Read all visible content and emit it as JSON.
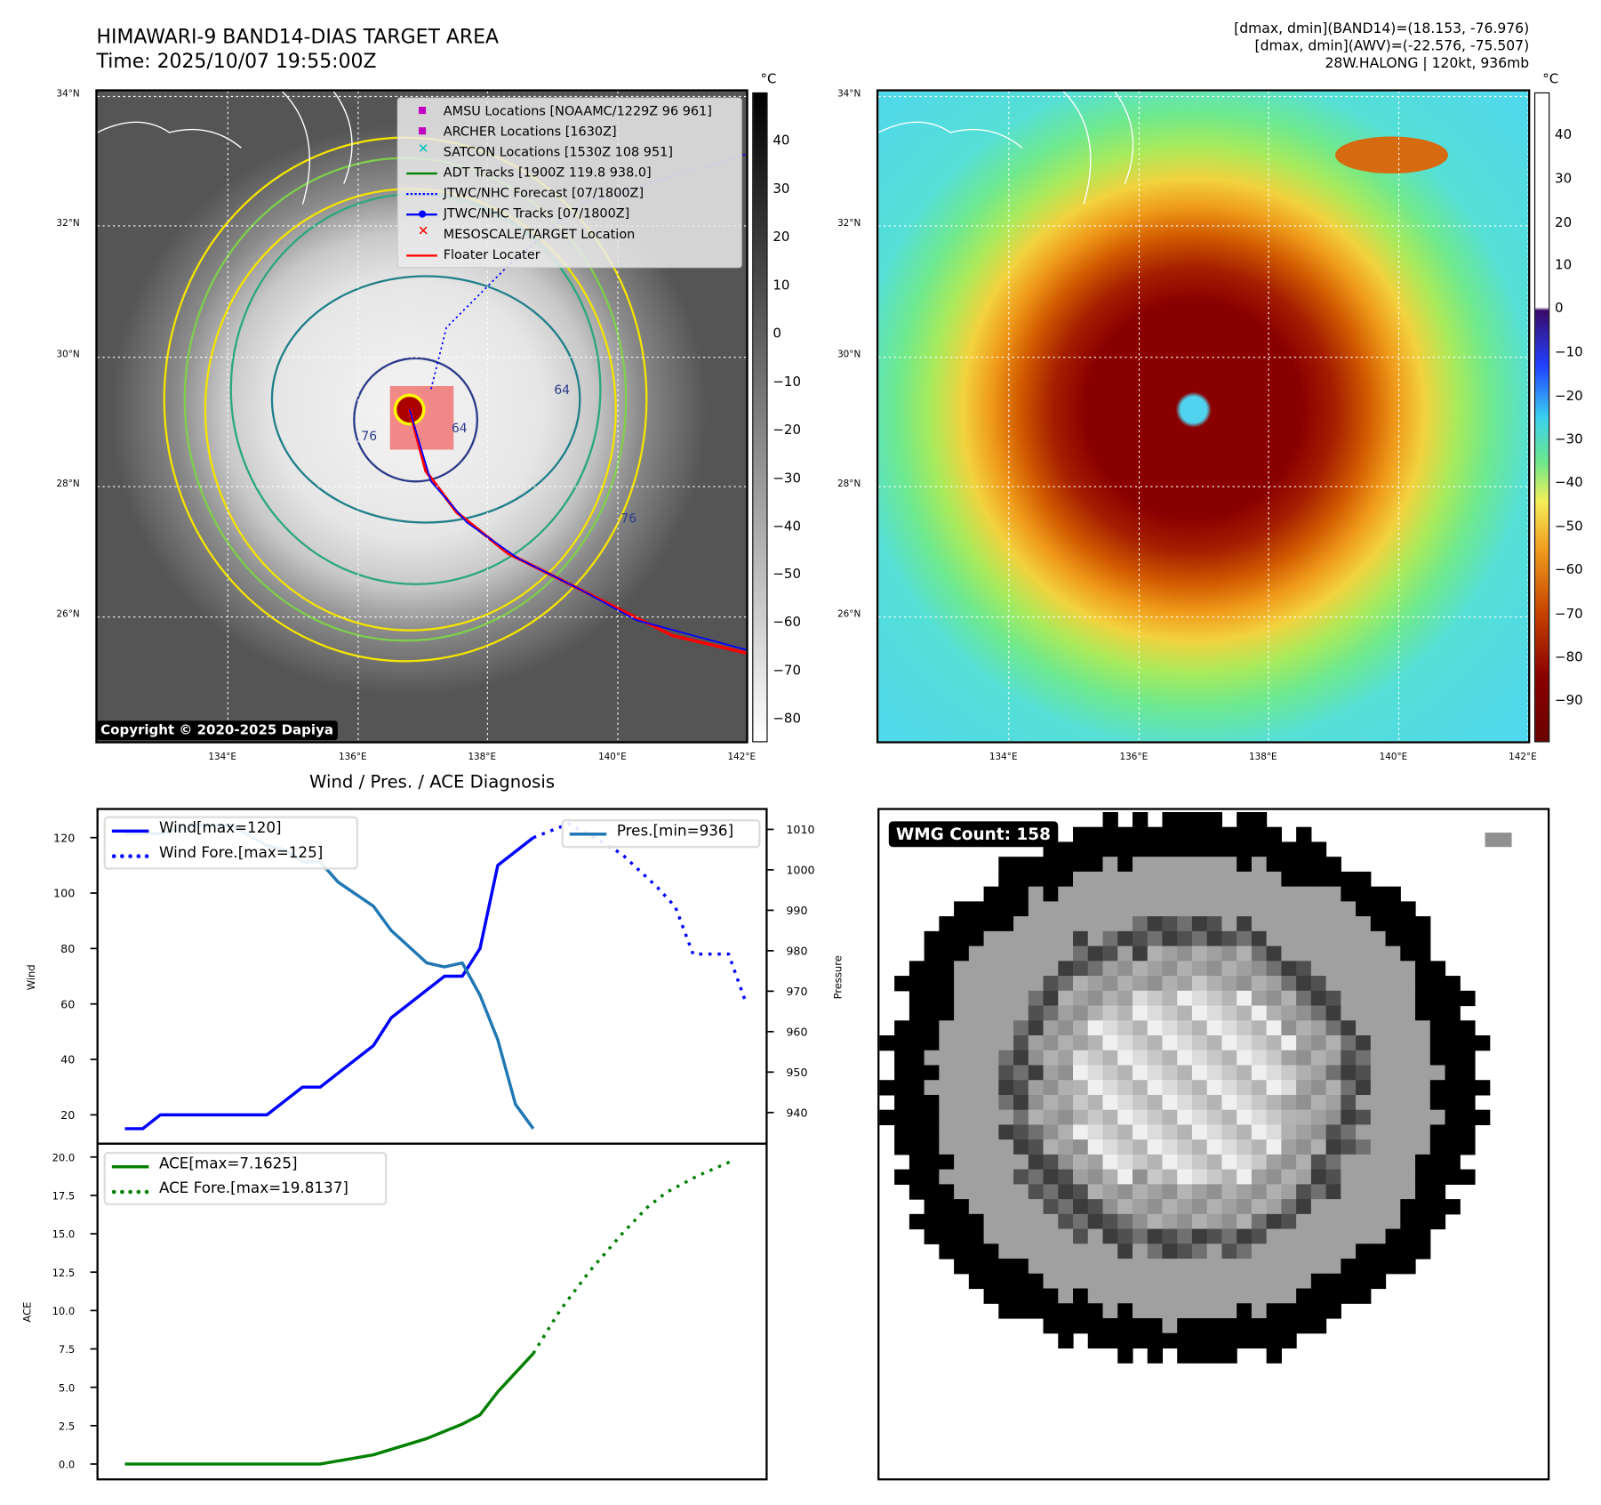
{
  "header": {
    "title_line1": "HIMAWARI-9 BAND14-DIAS TARGET AREA",
    "title_line2": "Time: 2025/10/07 19:55:00Z",
    "info_line1": "[dmax, dmin](BAND14)=(18.153, -76.976)",
    "info_line2": "[dmax, dmin](AWV)=(-22.576, -75.507)",
    "info_line3": "28W.HALONG | 120kt, 936mb"
  },
  "map": {
    "lat_labels": [
      "34°N",
      "32°N",
      "30°N",
      "28°N",
      "26°N"
    ],
    "lon_labels": [
      "134°E",
      "136°E",
      "138°E",
      "140°E",
      "142°E"
    ],
    "copyright": "Copyright © 2020-2025 Dapiya",
    "contour_labels": [
      "64",
      "64",
      "76",
      "76"
    ],
    "legend": [
      {
        "label": "AMSU Locations [NOAAMC/1229Z 96 961]",
        "symbol": "square",
        "color": "#c000c0"
      },
      {
        "label": "ARCHER Locations [1630Z]",
        "symbol": "square",
        "color": "#c000c0"
      },
      {
        "label": "SATCON Locations [1530Z 108 951]",
        "symbol": "x",
        "color": "#00c0c0"
      },
      {
        "label": "ADT Tracks [1900Z 119.8 938.0]",
        "symbol": "line",
        "color": "#008000"
      },
      {
        "label": "JTWC/NHC Forecast [07/1800Z]",
        "symbol": "dotted",
        "color": "#0000ff"
      },
      {
        "label": "JTWC/NHC Tracks [07/1800Z]",
        "symbol": "line-dot",
        "color": "#0000ff"
      },
      {
        "label": "MESOSCALE/TARGET Location",
        "symbol": "x",
        "color": "#ff0000"
      },
      {
        "label": "Floater Locater",
        "symbol": "line",
        "color": "#ff0000"
      }
    ]
  },
  "colorbar_left": {
    "unit": "°C",
    "ticks": [
      "40",
      "30",
      "20",
      "10",
      "0",
      "−10",
      "−20",
      "−30",
      "−40",
      "−50",
      "−60",
      "−70",
      "−80"
    ]
  },
  "colorbar_right": {
    "unit": "°C",
    "ticks": [
      "40",
      "30",
      "20",
      "10",
      "0",
      "−10",
      "−20",
      "−30",
      "−40",
      "−50",
      "−60",
      "−70",
      "−80",
      "−90"
    ]
  },
  "wmg": {
    "label": "WMG Count: 158"
  },
  "chart_data": [
    {
      "type": "line",
      "title": "Wind / Pres. / ACE Diagnosis",
      "ylabel": "Wind",
      "y2label": "Pressure",
      "xlim": [
        -1.6,
        36.2
      ],
      "ylim": [
        9.6,
        130.7
      ],
      "y2lim": [
        932.3,
        1015.3
      ],
      "yticks": [
        20,
        40,
        60,
        80,
        100,
        120
      ],
      "y2ticks": [
        940,
        950,
        960,
        970,
        980,
        990,
        1000,
        1010
      ],
      "series": [
        {
          "name": "Wind[max=120]",
          "axis": "left",
          "color": "#0000ff",
          "style": "solid",
          "x": [
            0,
            1,
            2,
            8,
            10,
            11,
            14,
            15,
            18,
            19,
            20,
            21,
            23
          ],
          "y": [
            15,
            15,
            20,
            20,
            30,
            30,
            45,
            55,
            70,
            70,
            80,
            110,
            120
          ]
        },
        {
          "name": "Wind Fore.[max=125]",
          "axis": "left",
          "color": "#0000ff",
          "style": "dotted",
          "x": [
            23,
            25,
            27,
            28,
            29,
            30,
            31,
            32,
            34,
            35
          ],
          "y": [
            120,
            125,
            118,
            114,
            108,
            102,
            95,
            78,
            78,
            60
          ]
        },
        {
          "name": "Pres.[min=936]",
          "axis": "right",
          "color": "#1f77b4",
          "style": "solid",
          "x": [
            0,
            2,
            4,
            6,
            8,
            9,
            10,
            11,
            12,
            14,
            15,
            17,
            18,
            19,
            20,
            21,
            22,
            23
          ],
          "y": [
            1009,
            1009,
            1011,
            1011,
            1006,
            1005,
            1002,
            1002,
            997,
            991,
            985,
            977,
            976,
            977,
            969,
            958,
            942,
            936
          ]
        }
      ]
    },
    {
      "type": "line",
      "ylabel": "ACE",
      "xlim": [
        -1.6,
        36.2
      ],
      "ylim": [
        -1.0,
        20.87
      ],
      "yticks": [
        "0.0",
        "2.5",
        "5.0",
        "7.5",
        "10.0",
        "12.5",
        "15.0",
        "17.5",
        "20.0"
      ],
      "series": [
        {
          "name": "ACE[max=7.1625]",
          "color": "#008000",
          "style": "solid",
          "x": [
            0,
            11,
            14,
            17,
            19,
            20,
            21,
            23
          ],
          "y": [
            0,
            0,
            0.6,
            1.66,
            2.6,
            3.2,
            4.7,
            7.2
          ]
        },
        {
          "name": "ACE Fore.[max=19.8137]",
          "color": "#008000",
          "style": "dotted",
          "x": [
            23,
            24.5,
            26.2,
            28,
            29.4,
            30.5,
            32.3,
            34.3
          ],
          "y": [
            7.2,
            10,
            12.6,
            15,
            16.7,
            17.7,
            18.8,
            19.8
          ]
        }
      ]
    }
  ]
}
